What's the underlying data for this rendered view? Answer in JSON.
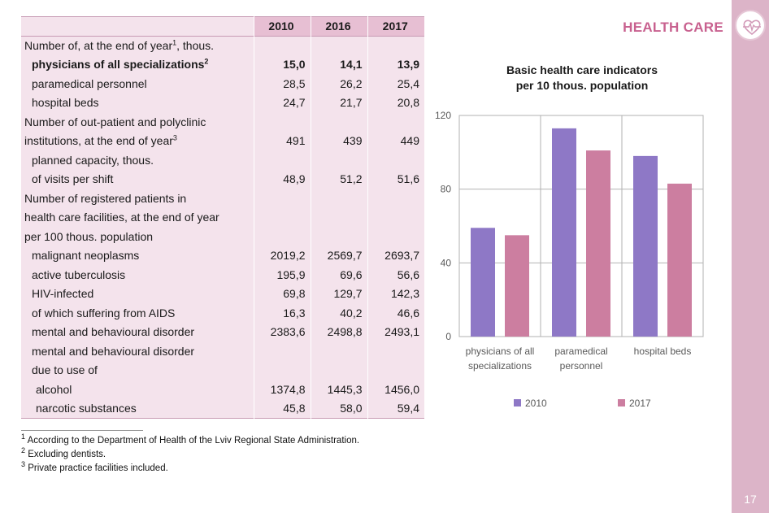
{
  "section_title": "HEALTH CARE",
  "page_number": "17",
  "table": {
    "columns": [
      "2010",
      "2016",
      "2017"
    ],
    "rows": [
      {
        "label": "Number of, at  the end of year",
        "sup": "1",
        "suffix": ", thous.",
        "values": [
          "",
          "",
          ""
        ],
        "style": "normal",
        "indent": 0
      },
      {
        "label": "physicians of all specializations",
        "sup": "2",
        "suffix": "",
        "values": [
          "15,0",
          "14,1",
          "13,9"
        ],
        "style": "bold",
        "indent": 1
      },
      {
        "label": "paramedical personnel",
        "sup": "",
        "suffix": "",
        "values": [
          "28,5",
          "26,2",
          "25,4"
        ],
        "style": "normal",
        "indent": 1
      },
      {
        "label": "hospital beds",
        "sup": "",
        "suffix": "",
        "values": [
          "24,7",
          "21,7",
          "20,8"
        ],
        "style": "normal",
        "indent": 1
      },
      {
        "label": "Number of out-patient and polyclinic",
        "sup": "",
        "suffix": "",
        "values": [
          "",
          "",
          ""
        ],
        "style": "normal",
        "indent": 0
      },
      {
        "label": "institutions, at the end of year",
        "sup": "3",
        "suffix": "",
        "values": [
          "491",
          "439",
          "449"
        ],
        "style": "normal",
        "indent": 0
      },
      {
        "label": "planned capacity, thous.",
        "sup": "",
        "suffix": "",
        "values": [
          "",
          "",
          ""
        ],
        "style": "normal",
        "indent": 1
      },
      {
        "label": "of visits per shift",
        "sup": "",
        "suffix": "",
        "values": [
          "48,9",
          "51,2",
          "51,6"
        ],
        "style": "normal",
        "indent": 1
      },
      {
        "label": "Number of registered patients in",
        "sup": "",
        "suffix": "",
        "values": [
          "",
          "",
          ""
        ],
        "style": "normal",
        "indent": 0
      },
      {
        "label": "health care facilities, at the end of year",
        "sup": "",
        "suffix": "",
        "values": [
          "",
          "",
          ""
        ],
        "style": "normal",
        "indent": 0
      },
      {
        "label": "per 100 thous. population",
        "sup": "",
        "suffix": "",
        "values": [
          "",
          "",
          ""
        ],
        "style": "normal",
        "indent": 0
      },
      {
        "label": "malignant neoplasms",
        "sup": "",
        "suffix": "",
        "values": [
          "2019,2",
          "2569,7",
          "2693,7"
        ],
        "style": "normal",
        "indent": 1
      },
      {
        "label": "active tuberculosis",
        "sup": "",
        "suffix": "",
        "values": [
          "195,9",
          "69,6",
          "56,6"
        ],
        "style": "normal",
        "indent": 1
      },
      {
        "label": "HIV-infected",
        "sup": "",
        "suffix": "",
        "values": [
          "69,8",
          "129,7",
          "142,3"
        ],
        "style": "normal",
        "indent": 1
      },
      {
        "label": " of which suffering from AIDS",
        "sup": "",
        "suffix": "",
        "values": [
          "16,3",
          "40,2",
          "46,6"
        ],
        "style": "normal",
        "indent": 1
      },
      {
        "label": "mental and behavioural disorder",
        "sup": "",
        "suffix": "",
        "values": [
          "2383,6",
          "2498,8",
          "2493,1"
        ],
        "style": "normal",
        "indent": 1
      },
      {
        "label": "mental and behavioural disorder",
        "sup": "",
        "suffix": "",
        "values": [
          "",
          "",
          ""
        ],
        "style": "normal",
        "indent": 1
      },
      {
        "label": "due to use of",
        "sup": "",
        "suffix": "",
        "values": [
          "",
          "",
          ""
        ],
        "style": "normal",
        "indent": 1
      },
      {
        "label": "alcohol",
        "sup": "",
        "suffix": "",
        "values": [
          "1374,8",
          "1445,3",
          "1456,0"
        ],
        "style": "normal",
        "indent": 2
      },
      {
        "label": "narcotic substances",
        "sup": "",
        "suffix": "",
        "values": [
          "45,8",
          "58,0",
          "59,4"
        ],
        "style": "normal",
        "indent": 2
      }
    ]
  },
  "footnotes": [
    {
      "mark": "1",
      "text": " According to the Department of Health of the Lviv Regional State Administration."
    },
    {
      "mark": "2",
      "text": " Excluding dentists."
    },
    {
      "mark": "3",
      "text": " Private practice facilities included."
    }
  ],
  "chart_data": {
    "type": "bar",
    "title": "Basic health care indicators per 10 thous. population",
    "title_lines": [
      "Basic health care indicators",
      "per 10 thous. population"
    ],
    "categories": [
      "physicians of all specializations",
      "paramedical personnel",
      "hospital beds"
    ],
    "category_lines": [
      [
        "physicians of all",
        "specializations"
      ],
      [
        "paramedical",
        "personnel"
      ],
      [
        "hospital beds"
      ]
    ],
    "series": [
      {
        "name": "2010",
        "values": [
          59,
          113,
          98
        ],
        "color": "#8e78c6"
      },
      {
        "name": "2017",
        "values": [
          55,
          101,
          83
        ],
        "color": "#cc7ea0"
      }
    ],
    "ylim": [
      0,
      120
    ],
    "yticks": [
      "0",
      "40",
      "80",
      "120"
    ],
    "ytick_values": [
      0,
      40,
      80,
      120
    ],
    "grid": true,
    "legend": "bottom"
  },
  "colors": {
    "accent": "#c8618f",
    "side_band": "#dcb4c8",
    "table_fill": "#f4e3ec",
    "header_fill": "#e7bfd3"
  },
  "icons": {
    "badge": "heartbeat-icon"
  }
}
